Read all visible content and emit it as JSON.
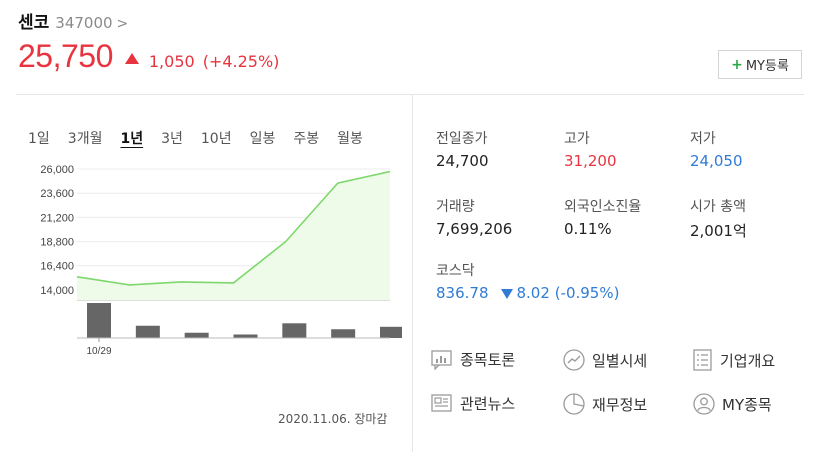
{
  "stock": {
    "name": "센코",
    "code": "347000",
    "code_chevron": ">",
    "price": "25,750",
    "change": "1,050",
    "change_pct": "(+4.25%)"
  },
  "my_button": {
    "plus": "+",
    "label": "MY등록"
  },
  "periods": [
    {
      "label": "1일",
      "active": false
    },
    {
      "label": "3개월",
      "active": false
    },
    {
      "label": "1년",
      "active": true
    },
    {
      "label": "3년",
      "active": false
    },
    {
      "label": "10년",
      "active": false
    },
    {
      "label": "일봉",
      "active": false
    },
    {
      "label": "주봉",
      "active": false
    },
    {
      "label": "월봉",
      "active": false
    }
  ],
  "chart_data": {
    "type": "line",
    "y_ticks": [
      "26,000",
      "23,600",
      "21,200",
      "18,800",
      "16,400",
      "14,000"
    ],
    "ylim": [
      13000,
      26400
    ],
    "x_label": "10/29",
    "price_values": [
      15300,
      14500,
      14800,
      14700,
      18800,
      24600,
      25750
    ],
    "volume_values": [
      1.0,
      0.35,
      0.15,
      0.1,
      0.42,
      0.25,
      0.32
    ]
  },
  "close_note": "2020.11.06. 장마감",
  "info": {
    "prev_close": {
      "label": "전일종가",
      "value": "24,700"
    },
    "high": {
      "label": "고가",
      "value": "31,200"
    },
    "low": {
      "label": "저가",
      "value": "24,050"
    },
    "volume": {
      "label": "거래량",
      "value": "7,699,206"
    },
    "foreign": {
      "label": "외국인소진율",
      "value": "0.11%"
    },
    "mktcap": {
      "label": "시가 총액",
      "value": "2,001억"
    },
    "kosdaq": {
      "label": "코스닥",
      "value": "836.78",
      "change": "8.02",
      "pct": "(-0.95%)"
    }
  },
  "links": {
    "discussion": "종목토론",
    "daily": "일별시세",
    "company": "기업개요",
    "news": "관련뉴스",
    "finance": "재무정보",
    "my": "MY종목"
  },
  "colors": {
    "up": "#e8343f",
    "down": "#2f7bd6",
    "line": "#7dd86b",
    "fill": "#effbe9",
    "bar": "#666666"
  }
}
